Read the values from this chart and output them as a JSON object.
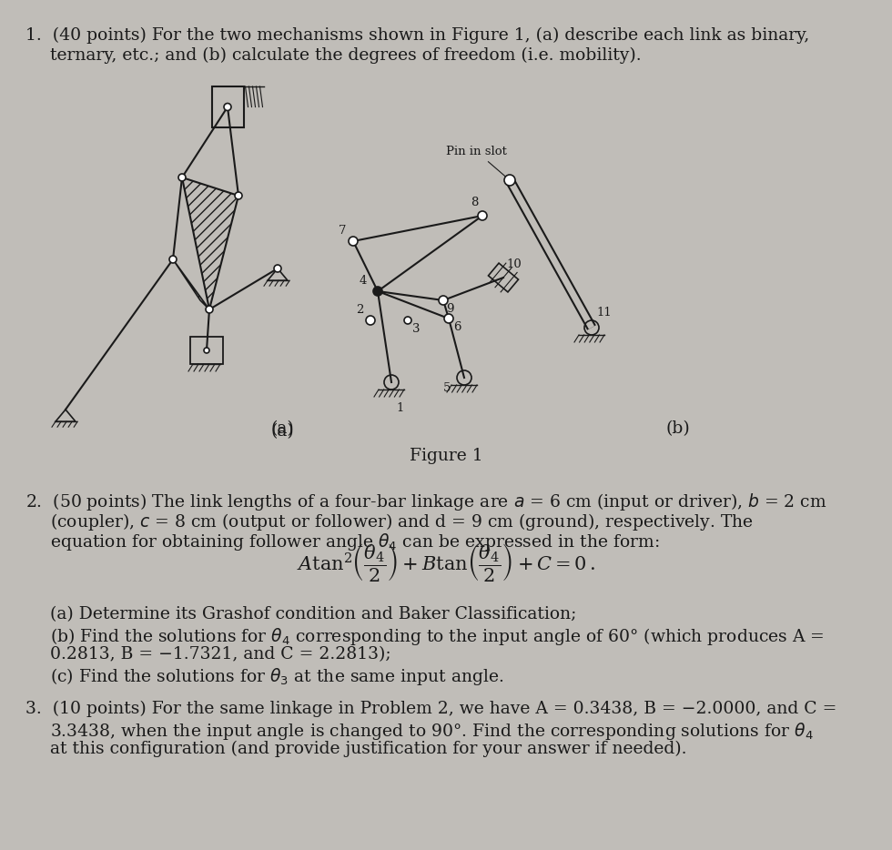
{
  "bg_color": "#c0bdb8",
  "text_color": "#1a1a1a",
  "fig_width": 9.8,
  "fig_height": 9.34,
  "q1_line1": "1.  (40 points) For the two mechanisms shown in Figure 1, (a) describe each link as binary,",
  "q1_line2": "ternary, etc.; and (b) calculate the degrees of freedom (i.e. mobility).",
  "fig1_caption": "Figure 1",
  "fig1_a_label": "(a)",
  "fig1_b_label": "(b)",
  "q2_line1": "2.  (50 points) The link lengths of a four-bar linkage are $a$ = 6 cm (input or driver), $b$ = 2 cm",
  "q2_line2": "(coupler), $c$ = 8 cm (output or follower) and d = 9 cm (ground), respectively. The",
  "q2_line3": "equation for obtaining follower angle $\\theta_4$ can be expressed in the form:",
  "q2_a": "(a) Determine its Grashof condition and Baker Classification;",
  "q2_b": "(b) Find the solutions for $\\theta_4$ corresponding to the input angle of 60° (which produces A =",
  "q2_b2": "0.2813, B = −1.7321, and C = 2.2813);",
  "q2_c": "(c) Find the solutions for $\\theta_3$ at the same input angle.",
  "q3_line1": "3.  (10 points) For the same linkage in Problem 2, we have A = 0.3438, B = −2.0000, and C =",
  "q3_line2": "3.3438, when the input angle is changed to 90°. Find the corresponding solutions for $\\theta_4$",
  "q3_line3": "at this configuration (and provide justification for your answer if needed).",
  "pin_in_slot": "Pin in slot"
}
